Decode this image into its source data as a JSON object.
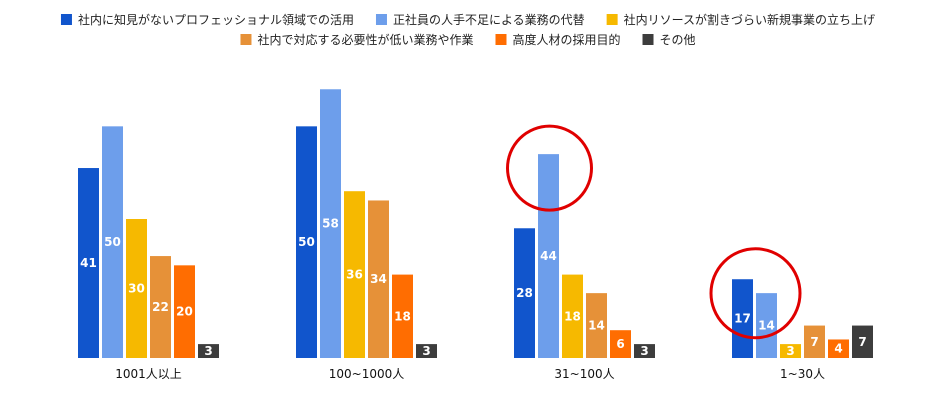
{
  "chart_data": {
    "type": "bar",
    "categories": [
      "1001人以上",
      "100~1000人",
      "31~100人",
      "1~30人"
    ],
    "series": [
      {
        "name": "社内に知見がないプロフェッショナル領域での活用",
        "color": "#1155cc",
        "values": [
          41,
          50,
          28,
          17
        ]
      },
      {
        "name": "正社員の人手不足による業務の代替",
        "color": "#6d9eeb",
        "values": [
          50,
          58,
          44,
          14
        ]
      },
      {
        "name": "社内リソースが割きづらい新規事業の立ち上げ",
        "color": "#f6b900",
        "values": [
          30,
          36,
          18,
          3
        ]
      },
      {
        "name": "社内で対応する必要性が低い業務や作業",
        "color": "#e69138",
        "values": [
          22,
          34,
          14,
          7
        ]
      },
      {
        "name": "高度人材の採用目的",
        "color": "#ff6d01",
        "values": [
          20,
          18,
          6,
          4
        ]
      },
      {
        "name": "その他",
        "color": "#3d3d3d",
        "values": [
          3,
          3,
          3,
          7
        ]
      }
    ],
    "ylim": [
      0,
      60
    ],
    "grid": false,
    "legend_position": "top",
    "annotations": [
      {
        "type": "circle-highlight",
        "color": "#e00000",
        "category": "31~100人",
        "series": [
          "正社員の人手不足による業務の代替"
        ]
      },
      {
        "type": "circle-highlight",
        "color": "#e00000",
        "category": "1~30人",
        "series": [
          "社内に知見がないプロフェッショナル領域での活用",
          "正社員の人手不足による業務の代替"
        ]
      }
    ]
  }
}
